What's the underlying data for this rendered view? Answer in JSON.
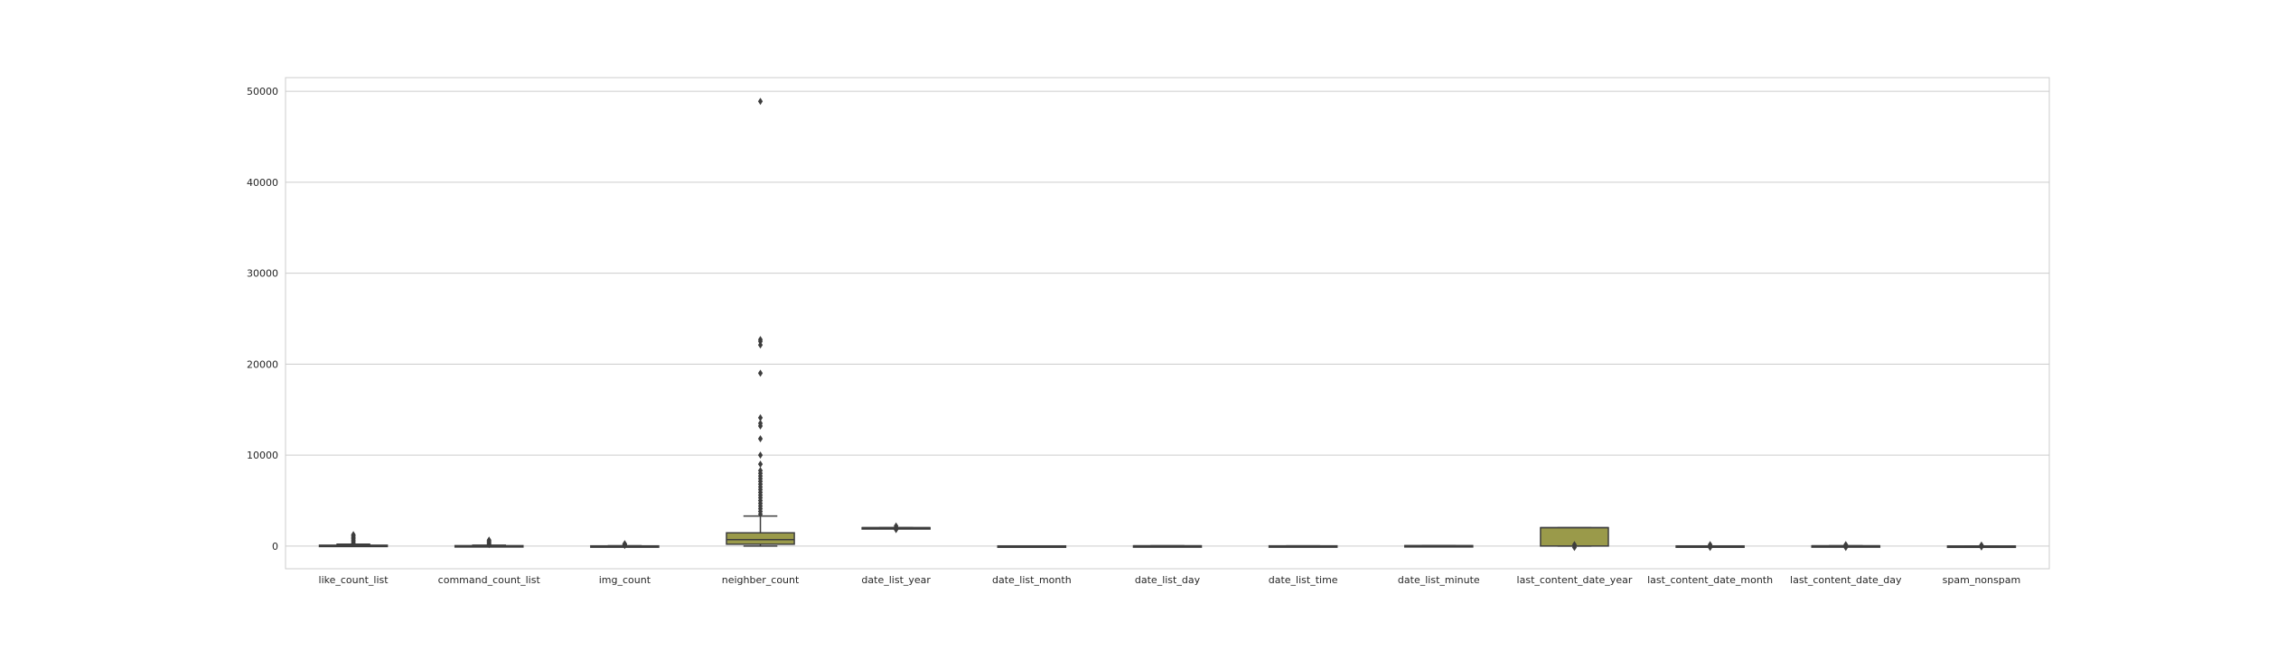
{
  "chart_data": {
    "type": "box",
    "title": "",
    "xlabel": "",
    "ylabel": "",
    "ylim": [
      -2500,
      51500
    ],
    "yticks": [
      0,
      10000,
      20000,
      30000,
      40000,
      50000
    ],
    "grid": true,
    "legend": "none",
    "colors": {
      "box_fill": "#9a9a4a",
      "box_line": "#3d3d3d",
      "grid": "#cccccc",
      "frame": "#cccccc",
      "outlier": "#3d3d3d"
    },
    "categories": [
      "like_count_list",
      "command_count_list",
      "img_count",
      "neighber_count",
      "date_list_year",
      "date_list_month",
      "date_list_day",
      "date_list_time",
      "date_list_minute",
      "last_content_date_year",
      "last_content_date_month",
      "last_content_date_day",
      "spam_nonspam"
    ],
    "boxes": [
      {
        "whisker_low": 0,
        "q1": 5,
        "median": 30,
        "q3": 90,
        "whisker_high": 200,
        "outliers": [
          350,
          500,
          650,
          800,
          950,
          1100,
          1250
        ]
      },
      {
        "whisker_low": 0,
        "q1": 2,
        "median": 10,
        "q3": 40,
        "whisker_high": 90,
        "outliers": [
          150,
          250,
          350,
          450,
          550,
          650
        ]
      },
      {
        "whisker_low": 0,
        "q1": 1,
        "median": 5,
        "q3": 15,
        "whisker_high": 30,
        "outliers": [
          60,
          100,
          150,
          200,
          250
        ]
      },
      {
        "whisker_low": 0,
        "q1": 200,
        "median": 700,
        "q3": 1450,
        "whisker_high": 3300,
        "outliers": [
          3500,
          3800,
          4100,
          4400,
          4700,
          5000,
          5300,
          5600,
          5900,
          6200,
          6500,
          6800,
          7100,
          7400,
          7700,
          8000,
          8300,
          9000,
          10000,
          11800,
          13200,
          13500,
          14100,
          19000,
          22100,
          22500,
          22700,
          48900
        ]
      },
      {
        "whisker_low": 2003,
        "q1": 2012,
        "median": 2015,
        "q3": 2017,
        "whisker_high": 2019,
        "outliers": [
          1800,
          1900,
          2200
        ]
      },
      {
        "whisker_low": 1,
        "q1": 3,
        "median": 6,
        "q3": 9,
        "whisker_high": 12,
        "outliers": []
      },
      {
        "whisker_low": 1,
        "q1": 8,
        "median": 16,
        "q3": 23,
        "whisker_high": 31,
        "outliers": []
      },
      {
        "whisker_low": 0,
        "q1": 6,
        "median": 12,
        "q3": 18,
        "whisker_high": 23,
        "outliers": []
      },
      {
        "whisker_low": 0,
        "q1": 15,
        "median": 30,
        "q3": 45,
        "whisker_high": 59,
        "outliers": []
      },
      {
        "whisker_low": 0,
        "q1": 0,
        "median": 2016,
        "q3": 2018,
        "whisker_high": 2019,
        "outliers": [
          -150,
          150
        ]
      },
      {
        "whisker_low": 0,
        "q1": 3,
        "median": 6,
        "q3": 9,
        "whisker_high": 12,
        "outliers": [
          -150,
          150
        ]
      },
      {
        "whisker_low": 0,
        "q1": 8,
        "median": 16,
        "q3": 23,
        "whisker_high": 31,
        "outliers": [
          -150,
          150
        ]
      },
      {
        "whisker_low": 0,
        "q1": 0,
        "median": 0,
        "q3": 1,
        "whisker_high": 1,
        "outliers": [
          -100,
          100
        ]
      }
    ]
  }
}
